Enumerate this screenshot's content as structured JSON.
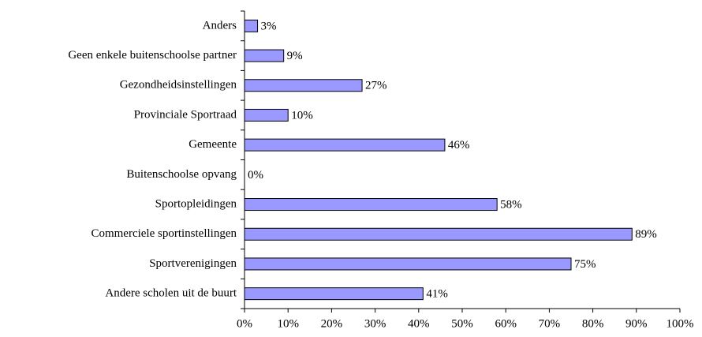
{
  "chart_data": {
    "type": "hbar",
    "categories": [
      "Anders",
      "Geen enkele buitenschoolse partner",
      "Gezondheidsinstellingen",
      "Provinciale Sportraad",
      "Gemeente",
      "Buitenschoolse opvang",
      "Sportopleidingen",
      "Commerciele sportinstellingen",
      "Sportverenigingen",
      "Andere scholen uit de buurt"
    ],
    "values": [
      3,
      9,
      27,
      10,
      46,
      0,
      58,
      89,
      75,
      41
    ],
    "value_labels": [
      "3%",
      "9%",
      "27%",
      "10%",
      "46%",
      "0%",
      "58%",
      "89%",
      "75%",
      "41%"
    ],
    "color": "#9999ff",
    "xlim": [
      0,
      100
    ],
    "xticks": [
      {
        "value": 0,
        "label": "0%"
      },
      {
        "value": 10,
        "label": "10%"
      },
      {
        "value": 20,
        "label": "20%"
      },
      {
        "value": 30,
        "label": "30%"
      },
      {
        "value": 40,
        "label": "40%"
      },
      {
        "value": 50,
        "label": "50%"
      },
      {
        "value": 60,
        "label": "60%"
      },
      {
        "value": 70,
        "label": "70%"
      },
      {
        "value": 80,
        "label": "80%"
      },
      {
        "value": 90,
        "label": "90%"
      },
      {
        "value": 100,
        "label": "100%"
      }
    ],
    "grid": false
  }
}
